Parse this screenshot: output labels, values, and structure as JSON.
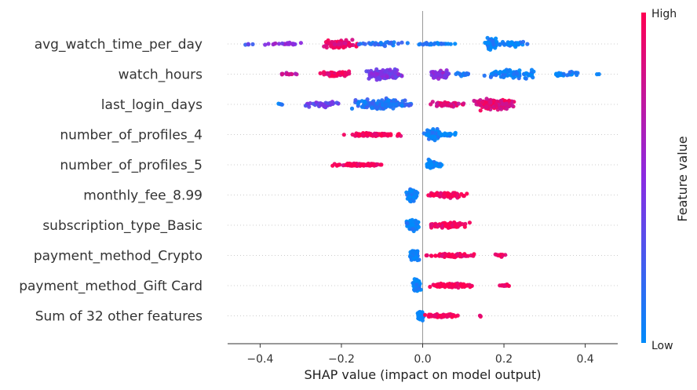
{
  "chart_data": {
    "type": "scatter",
    "subtype": "shap-beeswarm",
    "title": "",
    "xlabel": "SHAP value (impact on model output)",
    "xlim": [
      -0.48,
      0.48
    ],
    "xticks": [
      -0.4,
      -0.2,
      0.0,
      0.2,
      0.4
    ],
    "xtick_labels": [
      "−0.4",
      "−0.2",
      "0.0",
      "0.2",
      "0.4"
    ],
    "grid": false,
    "colorbar": {
      "title": "Feature value",
      "high_label": "High",
      "low_label": "Low",
      "low_color": "#008bfb",
      "high_color": "#ff0052",
      "mid_color": "#8a2be2"
    },
    "features": [
      {
        "name": "avg_watch_time_per_day",
        "clusters": [
          {
            "center": -0.43,
            "spread": 0.012,
            "width": 0.2,
            "n": 4,
            "value": 0.3
          },
          {
            "center": -0.34,
            "spread": 0.04,
            "width": 0.3,
            "n": 20,
            "value": 0.5
          },
          {
            "center": -0.2,
            "spread": 0.035,
            "width": 1.0,
            "n": 75,
            "value": 0.9
          },
          {
            "center": -0.1,
            "spread": 0.04,
            "width": 0.45,
            "n": 30,
            "value": 0.15
          },
          {
            "center": 0.02,
            "spread": 0.06,
            "width": 0.25,
            "n": 30,
            "value": 0.05
          },
          {
            "center": 0.17,
            "spread": 0.012,
            "width": 1.3,
            "n": 80,
            "value": 0.05
          },
          {
            "center": 0.22,
            "spread": 0.03,
            "width": 0.6,
            "n": 40,
            "value": 0.05
          }
        ]
      },
      {
        "name": "watch_hours",
        "clusters": [
          {
            "center": -0.33,
            "spread": 0.02,
            "width": 0.3,
            "n": 12,
            "value": 0.75
          },
          {
            "center": -0.22,
            "spread": 0.035,
            "width": 0.6,
            "n": 55,
            "value": 0.92
          },
          {
            "center": -0.1,
            "spread": 0.04,
            "width": 1.3,
            "n": 120,
            "value": 0.45
          },
          {
            "center": 0.04,
            "spread": 0.02,
            "width": 1.0,
            "n": 55,
            "value": 0.5
          },
          {
            "center": 0.1,
            "spread": 0.02,
            "width": 0.4,
            "n": 15,
            "value": 0.1
          },
          {
            "center": 0.22,
            "spread": 0.05,
            "width": 0.9,
            "n": 100,
            "value": 0.05
          },
          {
            "center": 0.35,
            "spread": 0.035,
            "width": 0.5,
            "n": 30,
            "value": 0.05
          },
          {
            "center": 0.43,
            "spread": 0.01,
            "width": 0.1,
            "n": 2,
            "value": 0.05
          }
        ]
      },
      {
        "name": "last_login_days",
        "clusters": [
          {
            "center": -0.35,
            "spread": 0.01,
            "width": 0.2,
            "n": 4,
            "value": 0.05
          },
          {
            "center": -0.25,
            "spread": 0.04,
            "width": 0.6,
            "n": 50,
            "value": 0.4
          },
          {
            "center": -0.1,
            "spread": 0.055,
            "width": 1.2,
            "n": 140,
            "value": 0.15
          },
          {
            "center": 0.06,
            "spread": 0.035,
            "width": 0.6,
            "n": 50,
            "value": 0.85
          },
          {
            "center": 0.18,
            "spread": 0.045,
            "width": 1.2,
            "n": 140,
            "value": 0.88
          }
        ]
      },
      {
        "name": "number_of_profiles_4",
        "clusters": [
          {
            "center": -0.12,
            "spread": 0.05,
            "width": 0.35,
            "n": 110,
            "value": 0.96
          },
          {
            "center": 0.025,
            "spread": 0.015,
            "width": 1.35,
            "n": 70,
            "value": 0.03
          },
          {
            "center": 0.06,
            "spread": 0.02,
            "width": 0.5,
            "n": 25,
            "value": 0.03
          }
        ]
      },
      {
        "name": "number_of_profiles_5",
        "clusters": [
          {
            "center": -0.16,
            "spread": 0.045,
            "width": 0.3,
            "n": 110,
            "value": 0.96
          },
          {
            "center": 0.02,
            "spread": 0.01,
            "width": 1.25,
            "n": 50,
            "value": 0.03
          },
          {
            "center": 0.04,
            "spread": 0.01,
            "width": 0.5,
            "n": 15,
            "value": 0.03
          }
        ]
      },
      {
        "name": "monthly_fee_8.99",
        "clusters": [
          {
            "center": -0.025,
            "spread": 0.01,
            "width": 1.35,
            "n": 85,
            "value": 0.03
          },
          {
            "center": 0.06,
            "spread": 0.04,
            "width": 0.6,
            "n": 85,
            "value": 0.96
          }
        ]
      },
      {
        "name": "subscription_type_Basic",
        "clusters": [
          {
            "center": -0.025,
            "spread": 0.012,
            "width": 1.35,
            "n": 85,
            "value": 0.03
          },
          {
            "center": 0.06,
            "spread": 0.04,
            "width": 0.6,
            "n": 85,
            "value": 0.96
          }
        ]
      },
      {
        "name": "payment_method_Crypto",
        "clusters": [
          {
            "center": -0.02,
            "spread": 0.01,
            "width": 1.35,
            "n": 70,
            "value": 0.03
          },
          {
            "center": 0.07,
            "spread": 0.04,
            "width": 0.4,
            "n": 70,
            "value": 0.96
          },
          {
            "center": 0.19,
            "spread": 0.012,
            "width": 0.4,
            "n": 12,
            "value": 0.96
          }
        ]
      },
      {
        "name": "payment_method_Gift Card",
        "clusters": [
          {
            "center": -0.015,
            "spread": 0.008,
            "width": 1.35,
            "n": 60,
            "value": 0.03
          },
          {
            "center": 0.07,
            "spread": 0.04,
            "width": 0.5,
            "n": 75,
            "value": 0.96
          },
          {
            "center": 0.2,
            "spread": 0.014,
            "width": 0.4,
            "n": 14,
            "value": 0.96
          }
        ]
      },
      {
        "name": "Sum of 32 other features",
        "clusters": [
          {
            "center": -0.005,
            "spread": 0.008,
            "width": 1.35,
            "n": 50,
            "value": 0.03
          },
          {
            "center": 0.05,
            "spread": 0.035,
            "width": 0.45,
            "n": 60,
            "value": 0.96
          },
          {
            "center": 0.14,
            "spread": 0.005,
            "width": 0.2,
            "n": 3,
            "value": 0.96
          }
        ]
      }
    ]
  }
}
